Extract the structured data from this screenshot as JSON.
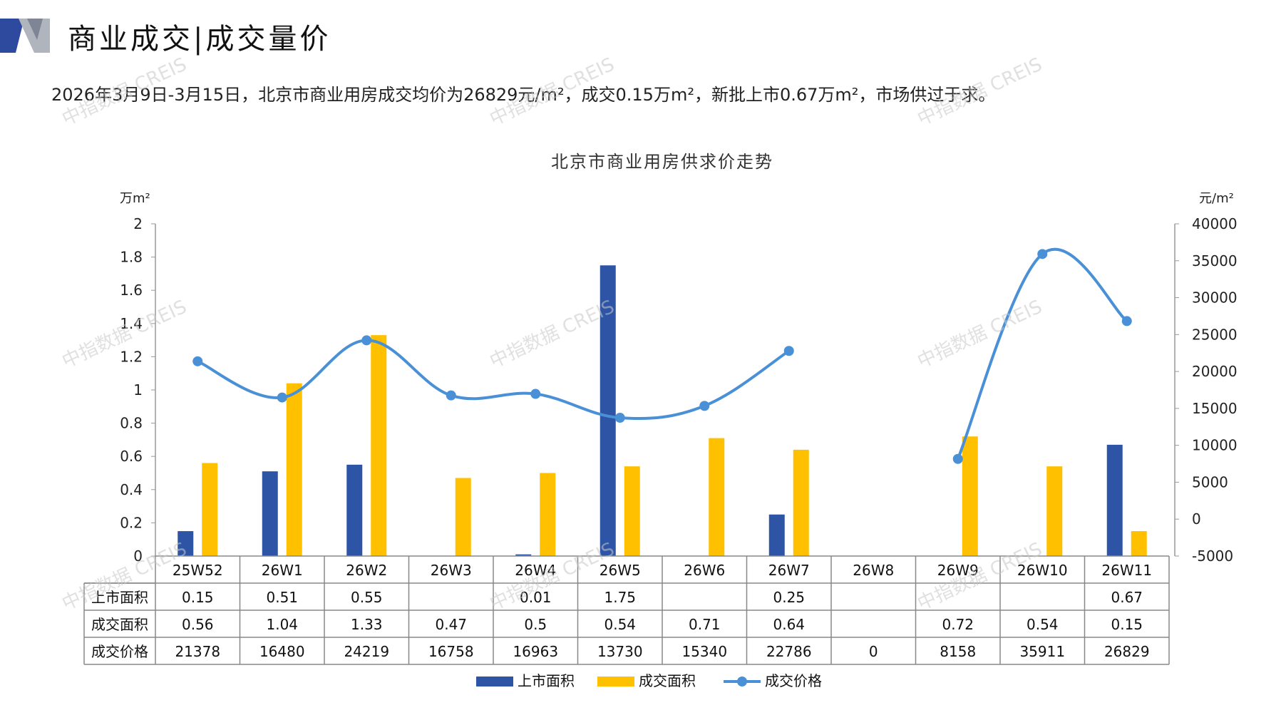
{
  "header": {
    "title": "商业成交|成交量价",
    "summary": "2026年3月9日-3月15日，北京市商业用房成交均价为26829元/m²，成交0.15万m²，新批上市0.67万m²，市场供过于求。"
  },
  "colors": {
    "supply": "#2E55A5",
    "deal_area": "#FFC000",
    "price": "#4A90D6",
    "header_dark": "#2E4A9E",
    "header_gray": "#B0B4BC"
  },
  "watermark": "中指数据 CREIS",
  "chart_data": {
    "type": "bar",
    "title": "北京市商业用房供求价走势",
    "y_left_unit": "万m²",
    "y_right_unit": "元/m²",
    "y_left_lim": [
      0,
      2
    ],
    "y_left_ticks": [
      "2",
      "1.8",
      "1.6",
      "1.4",
      "1.2",
      "1",
      "0.8",
      "0.6",
      "0.4",
      "0.2",
      "0"
    ],
    "y_right_lim": [
      -5000,
      40000
    ],
    "y_right_ticks": [
      "40000",
      "35000",
      "30000",
      "25000",
      "20000",
      "15000",
      "10000",
      "5000",
      "0",
      "-5000"
    ],
    "categories": [
      "25W52",
      "26W1",
      "26W2",
      "26W3",
      "26W4",
      "26W5",
      "26W6",
      "26W7",
      "26W8",
      "26W9",
      "26W10",
      "26W11"
    ],
    "series": [
      {
        "name": "上市面积",
        "type": "bar",
        "axis": "left",
        "values": [
          0.15,
          0.51,
          0.55,
          null,
          0.01,
          1.75,
          null,
          0.25,
          null,
          null,
          null,
          0.67
        ]
      },
      {
        "name": "成交面积",
        "type": "bar",
        "axis": "left",
        "values": [
          0.56,
          1.04,
          1.33,
          0.47,
          0.5,
          0.54,
          0.71,
          0.64,
          null,
          0.72,
          0.54,
          0.15
        ]
      },
      {
        "name": "成交价格",
        "type": "line",
        "axis": "right",
        "values": [
          21378,
          16480,
          24219,
          16758,
          16963,
          13730,
          15340,
          22786,
          0,
          8158,
          35911,
          26829
        ]
      }
    ],
    "table_rows": [
      {
        "label": "上市面积",
        "cells": [
          "0.15",
          "0.51",
          "0.55",
          "",
          "0.01",
          "1.75",
          "",
          "0.25",
          "",
          "",
          "",
          "0.67"
        ]
      },
      {
        "label": "成交面积",
        "cells": [
          "0.56",
          "1.04",
          "1.33",
          "0.47",
          "0.5",
          "0.54",
          "0.71",
          "0.64",
          "",
          "0.72",
          "0.54",
          "0.15"
        ]
      },
      {
        "label": "成交价格",
        "cells": [
          "21378",
          "16480",
          "24219",
          "16758",
          "16963",
          "13730",
          "15340",
          "22786",
          "0",
          "8158",
          "35911",
          "26829"
        ]
      }
    ],
    "legend": [
      "上市面积",
      "成交面积",
      "成交价格"
    ],
    "legend_position": "bottom",
    "grid": false
  }
}
